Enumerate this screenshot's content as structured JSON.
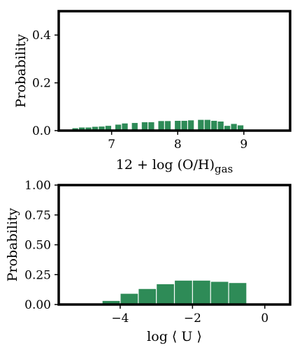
{
  "colors": {
    "bar": "#2e8b57",
    "frame": "#000000",
    "background": "#ffffff"
  },
  "chart_data": [
    {
      "type": "bar",
      "title": "",
      "xlabel": {
        "main": "12 + log (O/H)",
        "sub": "gas"
      },
      "ylabel": "Probability",
      "xlim": [
        6.2,
        9.7
      ],
      "ylim": [
        0,
        0.5
      ],
      "xticks": [
        {
          "value": 7,
          "label": "7"
        },
        {
          "value": 8,
          "label": "8"
        },
        {
          "value": 9,
          "label": "9"
        }
      ],
      "yticks": [
        {
          "value": 0.0,
          "label": "0.0"
        },
        {
          "value": 0.2,
          "label": "0.2"
        },
        {
          "value": 0.4,
          "label": "0.4"
        }
      ],
      "bin_width": 0.1,
      "bins": [
        {
          "left": 6.4,
          "value": 0.01
        },
        {
          "left": 6.5,
          "value": 0.013
        },
        {
          "left": 6.6,
          "value": 0.013
        },
        {
          "left": 6.7,
          "value": 0.016
        },
        {
          "left": 6.8,
          "value": 0.017
        },
        {
          "left": 6.9,
          "value": 0.02
        },
        {
          "left": 7.05,
          "value": 0.025
        },
        {
          "left": 7.15,
          "value": 0.03
        },
        {
          "left": 7.3,
          "value": 0.032
        },
        {
          "left": 7.45,
          "value": 0.035
        },
        {
          "left": 7.55,
          "value": 0.035
        },
        {
          "left": 7.7,
          "value": 0.04
        },
        {
          "left": 7.8,
          "value": 0.04
        },
        {
          "left": 7.95,
          "value": 0.041
        },
        {
          "left": 8.05,
          "value": 0.041
        },
        {
          "left": 8.15,
          "value": 0.043
        },
        {
          "left": 8.3,
          "value": 0.045
        },
        {
          "left": 8.4,
          "value": 0.045
        },
        {
          "left": 8.5,
          "value": 0.041
        },
        {
          "left": 8.6,
          "value": 0.038
        },
        {
          "left": 8.7,
          "value": 0.02
        },
        {
          "left": 8.8,
          "value": 0.028
        },
        {
          "left": 8.9,
          "value": 0.022
        }
      ],
      "grid": false
    },
    {
      "type": "bar",
      "title": "",
      "xlabel": {
        "main": "log ⟨ U ⟩",
        "sub": ""
      },
      "ylabel": "Probability",
      "xlim": [
        -5.7,
        0.7
      ],
      "ylim": [
        0,
        1.0
      ],
      "xticks": [
        {
          "value": -4,
          "label": "−4"
        },
        {
          "value": -2,
          "label": "−2"
        },
        {
          "value": 0,
          "label": "0"
        }
      ],
      "yticks": [
        {
          "value": 0.0,
          "label": "0.00"
        },
        {
          "value": 0.25,
          "label": "0.25"
        },
        {
          "value": 0.5,
          "label": "0.50"
        },
        {
          "value": 0.75,
          "label": "0.75"
        },
        {
          "value": 1.0,
          "label": "1.00"
        }
      ],
      "bin_width": 0.5,
      "bins": [
        {
          "left": -4.5,
          "value": 0.03
        },
        {
          "left": -4.0,
          "value": 0.09
        },
        {
          "left": -3.5,
          "value": 0.13
        },
        {
          "left": -3.0,
          "value": 0.17
        },
        {
          "left": -2.5,
          "value": 0.2
        },
        {
          "left": -2.0,
          "value": 0.2
        },
        {
          "left": -1.5,
          "value": 0.19
        },
        {
          "left": -1.0,
          "value": 0.18
        }
      ],
      "grid": false
    }
  ]
}
